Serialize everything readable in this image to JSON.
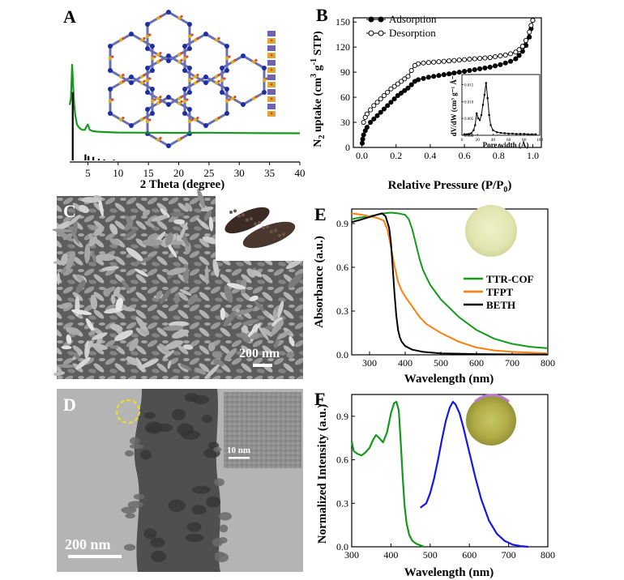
{
  "panels": {
    "a": {
      "label": "A",
      "chart": {
        "type": "line",
        "xlabel": "2 Theta (degree)",
        "xlim": [
          2,
          40
        ],
        "xticks": [
          5,
          10,
          15,
          20,
          25,
          30,
          35,
          40
        ],
        "series": [
          {
            "color": "#139a1b",
            "x": [
              2.0,
              2.2,
              2.4,
              2.6,
              2.75,
              2.9,
              3.0,
              3.2,
              3.5,
              3.8,
              4.1,
              4.5,
              4.8,
              5.0,
              5.3,
              5.8,
              6.5,
              8,
              10,
              15,
              20,
              25,
              30,
              35,
              40
            ],
            "y": [
              0.55,
              0.62,
              1.0,
              0.72,
              0.55,
              0.45,
              0.4,
              0.33,
              0.3,
              0.28,
              0.27,
              0.27,
              0.31,
              0.33,
              0.27,
              0.255,
              0.25,
              0.245,
              0.24,
              0.238,
              0.236,
              0.238,
              0.235,
              0.233,
              0.232
            ]
          },
          {
            "color": "#000000",
            "bars_x": [
              2.5,
              4.6,
              5.1,
              5.9,
              6.8,
              7.7,
              9.3
            ],
            "bars_y": [
              0.86,
              0.075,
              0.055,
              0.045,
              0.02,
              0.012,
              0.01
            ]
          }
        ]
      }
    },
    "b": {
      "label": "B",
      "chart": {
        "type": "scatter",
        "xlabel_main": "Relative Pressure (P/P",
        "xlabel_sub": "0",
        "xlabel_close": ")",
        "ylabel_pre": "N",
        "ylabel_sub": "2",
        "ylabel_mid": " uptake (cm",
        "ylabel_sup1": "3",
        "ylabel_g": " g",
        "ylabel_sup2": "-1",
        "ylabel_end": " STP)",
        "xlim": [
          -0.05,
          1.05
        ],
        "ylim": [
          0,
          155
        ],
        "xticks": [
          0.0,
          0.2,
          0.4,
          0.6,
          0.8,
          1.0
        ],
        "yticks": [
          0,
          30,
          60,
          90,
          120,
          150
        ],
        "series": [
          {
            "name": "Adsorption",
            "marker": "filled",
            "x": [
              0.002,
              0.005,
              0.01,
              0.02,
              0.03,
              0.05,
              0.07,
              0.09,
              0.11,
              0.13,
              0.15,
              0.17,
              0.19,
              0.21,
              0.23,
              0.25,
              0.27,
              0.29,
              0.31,
              0.33,
              0.36,
              0.39,
              0.42,
              0.45,
              0.48,
              0.51,
              0.54,
              0.57,
              0.6,
              0.63,
              0.66,
              0.69,
              0.72,
              0.75,
              0.78,
              0.81,
              0.84,
              0.87,
              0.9,
              0.92,
              0.94,
              0.96,
              0.98,
              0.99,
              1.0
            ],
            "y": [
              5,
              10,
              15,
              20,
              24,
              30,
              34,
              38,
              42,
              46,
              50,
              54,
              58,
              62,
              65,
              68,
              71,
              75,
              79,
              81,
              82.5,
              84,
              85,
              86,
              87,
              88,
              89,
              90,
              91,
              92,
              93,
              94,
              95,
              96,
              97.5,
              99,
              101,
              103,
              106,
              110,
              115,
              122,
              132,
              142,
              152
            ]
          },
          {
            "name": "Desorption",
            "marker": "open",
            "x": [
              1.0,
              0.99,
              0.98,
              0.96,
              0.94,
              0.92,
              0.9,
              0.87,
              0.84,
              0.81,
              0.78,
              0.75,
              0.72,
              0.69,
              0.66,
              0.63,
              0.6,
              0.57,
              0.54,
              0.51,
              0.48,
              0.45,
              0.42,
              0.39,
              0.36,
              0.33,
              0.31,
              0.29,
              0.27,
              0.25,
              0.23,
              0.21,
              0.19,
              0.17,
              0.15,
              0.13,
              0.11,
              0.09,
              0.07,
              0.05,
              0.03,
              0.02,
              0.01
            ],
            "y": [
              152,
              146,
              138,
              128,
              121,
              117,
              114,
              112,
              110.5,
              109.5,
              108.5,
              107.5,
              107,
              106.5,
              106,
              105.5,
              105,
              104.5,
              104,
              103.5,
              103,
              102.5,
              102,
              101.5,
              101,
              100,
              98,
              92,
              85,
              82,
              79,
              76,
              73,
              70,
              66,
              62,
              58,
              54,
              50,
              45,
              40,
              36,
              30
            ]
          }
        ],
        "legend_position": "top-left",
        "inset": {
          "xlabel": "Pore width (Å)",
          "ylabel": "dV/dW (cm³ g⁻¹ Å⁻¹)",
          "xlim": [
            0,
            100
          ],
          "ylim": [
            0,
            0.018
          ],
          "xticks": [
            0,
            20,
            40,
            60,
            80,
            100
          ],
          "yticks": [
            0.0,
            0.005,
            0.01,
            0.015
          ],
          "ytick_labels": [
            "0.000",
            "0.005",
            "0.010",
            "0.015"
          ],
          "x": [
            3,
            6,
            9,
            12,
            15,
            17,
            19,
            21,
            23,
            25,
            27,
            29,
            31,
            33,
            35,
            37,
            40,
            45,
            50,
            55,
            60,
            65,
            70,
            75,
            80,
            85,
            90,
            95
          ],
          "y": [
            0.0003,
            0.0003,
            0.0004,
            0.0006,
            0.0015,
            0.003,
            0.0065,
            0.005,
            0.0045,
            0.006,
            0.009,
            0.012,
            0.0155,
            0.011,
            0.006,
            0.003,
            0.0015,
            0.0009,
            0.0007,
            0.0006,
            0.0005,
            0.0005,
            0.0004,
            0.0004,
            0.0004,
            0.0003,
            0.0003,
            0.0003
          ]
        }
      }
    },
    "c": {
      "label": "C",
      "scale_bar": "200 nm"
    },
    "d": {
      "label": "D",
      "scale_bar": "200 nm",
      "inset_scale_bar": "10 nm"
    },
    "e": {
      "label": "E",
      "chart": {
        "type": "line",
        "xlabel": "Wavelength (nm)",
        "ylabel": "Absorbance (a.u.)",
        "xlim": [
          250,
          800
        ],
        "ylim": [
          0,
          1.0
        ],
        "xticks": [
          300,
          400,
          500,
          600,
          700,
          800
        ],
        "yticks": [
          0.0,
          0.3,
          0.6,
          0.9
        ],
        "series": [
          {
            "name": "TTR-COF",
            "color": "#139a1b",
            "x": [
              250,
              270,
              300,
              320,
              340,
              360,
              380,
              400,
              410,
              420,
              430,
              440,
              450,
              470,
              500,
              550,
              600,
              650,
              700,
              750,
              800
            ],
            "y": [
              0.93,
              0.94,
              0.95,
              0.96,
              0.97,
              0.975,
              0.97,
              0.96,
              0.93,
              0.86,
              0.76,
              0.66,
              0.58,
              0.48,
              0.38,
              0.26,
              0.17,
              0.11,
              0.075,
              0.055,
              0.045
            ]
          },
          {
            "name": "TFPT",
            "color": "#ff7f0e",
            "x": [
              250,
              280,
              300,
              320,
              330,
              340,
              350,
              360,
              370,
              380,
              390,
              400,
              420,
              440,
              460,
              500,
              550,
              600,
              650,
              700,
              750,
              800
            ],
            "y": [
              0.97,
              0.96,
              0.95,
              0.94,
              0.93,
              0.92,
              0.86,
              0.74,
              0.61,
              0.5,
              0.44,
              0.4,
              0.33,
              0.26,
              0.21,
              0.15,
              0.09,
              0.05,
              0.03,
              0.02,
              0.015,
              0.01
            ]
          },
          {
            "name": "BETH",
            "color": "#000000",
            "x": [
              250,
              280,
              300,
              320,
              335,
              345,
              355,
              360,
              365,
              370,
              375,
              380,
              385,
              390,
              400,
              420,
              450,
              500,
              550,
              600,
              700,
              800
            ],
            "y": [
              0.91,
              0.93,
              0.945,
              0.96,
              0.97,
              0.95,
              0.87,
              0.77,
              0.6,
              0.42,
              0.27,
              0.17,
              0.12,
              0.09,
              0.06,
              0.035,
              0.02,
              0.01,
              0.008,
              0.005,
              0.003,
              0.002
            ]
          }
        ],
        "legend_position": "center-right"
      }
    },
    "f": {
      "label": "F",
      "chart": {
        "type": "line",
        "xlabel": "Wavelength (nm)",
        "ylabel": "Normalized Intensity (a.u.)",
        "xlim": [
          300,
          800
        ],
        "ylim": [
          0,
          1.05
        ],
        "xticks": [
          300,
          400,
          500,
          600,
          700,
          800
        ],
        "yticks": [
          0.0,
          0.3,
          0.6,
          0.9
        ],
        "series": [
          {
            "color": "#139a1b",
            "x": [
              300,
              305,
              315,
              325,
              335,
              345,
              355,
              362,
              370,
              380,
              390,
              400,
              408,
              414,
              420,
              425,
              430,
              435,
              440,
              447,
              455,
              465,
              475,
              485
            ],
            "y": [
              0.73,
              0.66,
              0.64,
              0.63,
              0.65,
              0.68,
              0.74,
              0.77,
              0.75,
              0.72,
              0.79,
              0.92,
              0.99,
              1.0,
              0.94,
              0.72,
              0.48,
              0.28,
              0.16,
              0.08,
              0.04,
              0.02,
              0.01,
              0.0
            ]
          },
          {
            "color": "#1515ee",
            "x": [
              475,
              490,
              500,
              510,
              520,
              530,
              540,
              550,
              558,
              565,
              575,
              585,
              600,
              615,
              630,
              650,
              670,
              690,
              710,
              730,
              750
            ],
            "y": [
              0.27,
              0.3,
              0.37,
              0.47,
              0.6,
              0.74,
              0.87,
              0.96,
              1.0,
              0.98,
              0.92,
              0.82,
              0.65,
              0.48,
              0.33,
              0.18,
              0.09,
              0.04,
              0.015,
              0.005,
              0.0
            ]
          }
        ]
      }
    }
  }
}
